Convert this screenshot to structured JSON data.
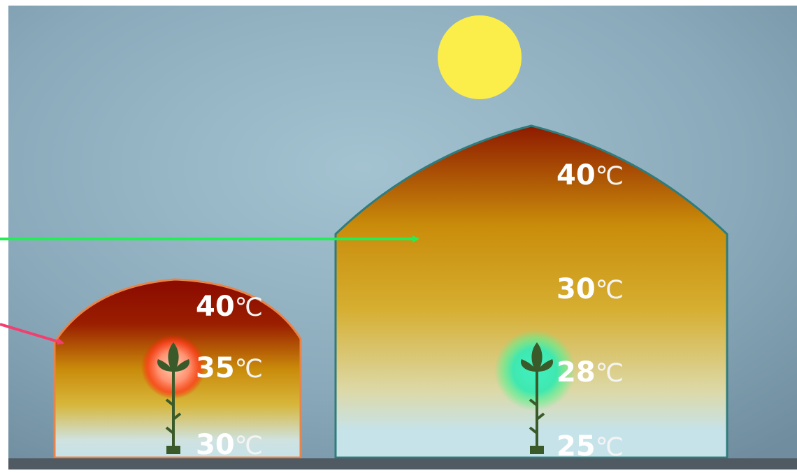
{
  "greenhouses": [
    {
      "labels": [
        {
          "number": "40",
          "unit": "℃"
        },
        {
          "number": "35",
          "unit": "℃"
        },
        {
          "number": "30",
          "unit": "℃"
        }
      ]
    },
    {
      "labels": [
        {
          "number": "40",
          "unit": "℃"
        },
        {
          "number": "30",
          "unit": "℃"
        },
        {
          "number": "28",
          "unit": "℃"
        },
        {
          "number": "25",
          "unit": "℃"
        }
      ]
    }
  ]
}
